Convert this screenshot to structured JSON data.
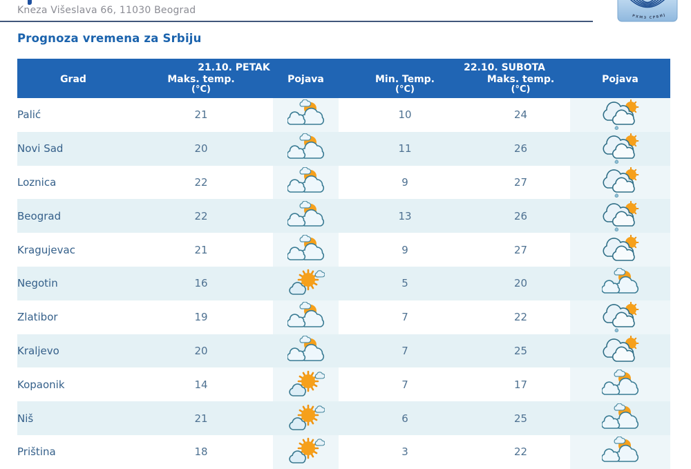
{
  "header": {
    "address": "Kneza Višeslava 66, 11030 Beograd",
    "logo_caption": "РХМЗ СРБИЈЕ"
  },
  "page_title": "Prognoza vremena za Srbiju",
  "table": {
    "day_groups": [
      "21.10. PETAK",
      "22.10. SUBOTA"
    ],
    "columns": [
      {
        "label": "Grad",
        "sub": ""
      },
      {
        "label": "Maks. temp.",
        "sub": "(°C)"
      },
      {
        "label": "Pojava",
        "sub": ""
      },
      {
        "label": "Min. Temp.",
        "sub": "(°C)"
      },
      {
        "label": "Maks. temp.",
        "sub": "(°C)"
      },
      {
        "label": "Pojava",
        "sub": ""
      }
    ],
    "rows": [
      {
        "city": "Palić",
        "fri_max": "21",
        "fri_icon": "partly-cloudy",
        "sat_min": "10",
        "sat_max": "24",
        "sat_icon": "cloudy-sun-drizzle"
      },
      {
        "city": "Novi Sad",
        "fri_max": "20",
        "fri_icon": "partly-cloudy",
        "sat_min": "11",
        "sat_max": "26",
        "sat_icon": "cloudy-sun-drizzle"
      },
      {
        "city": "Loznica",
        "fri_max": "22",
        "fri_icon": "partly-cloudy",
        "sat_min": "9",
        "sat_max": "27",
        "sat_icon": "cloudy-sun-drizzle"
      },
      {
        "city": "Beograd",
        "fri_max": "22",
        "fri_icon": "partly-cloudy",
        "sat_min": "13",
        "sat_max": "26",
        "sat_icon": "cloudy-sun-drizzle"
      },
      {
        "city": "Kragujevac",
        "fri_max": "21",
        "fri_icon": "partly-cloudy",
        "sat_min": "9",
        "sat_max": "27",
        "sat_icon": "cloudy-sun"
      },
      {
        "city": "Negotin",
        "fri_max": "16",
        "fri_icon": "mostly-sunny",
        "sat_min": "5",
        "sat_max": "20",
        "sat_icon": "partly-cloudy"
      },
      {
        "city": "Zlatibor",
        "fri_max": "19",
        "fri_icon": "partly-cloudy",
        "sat_min": "7",
        "sat_max": "22",
        "sat_icon": "cloudy-sun-drizzle"
      },
      {
        "city": "Kraljevo",
        "fri_max": "20",
        "fri_icon": "partly-cloudy",
        "sat_min": "7",
        "sat_max": "25",
        "sat_icon": "cloudy-sun"
      },
      {
        "city": "Kopaonik",
        "fri_max": "14",
        "fri_icon": "mostly-sunny",
        "sat_min": "7",
        "sat_max": "17",
        "sat_icon": "partly-cloudy"
      },
      {
        "city": "Niš",
        "fri_max": "21",
        "fri_icon": "mostly-sunny",
        "sat_min": "6",
        "sat_max": "25",
        "sat_icon": "partly-cloudy"
      },
      {
        "city": "Priština",
        "fri_max": "18",
        "fri_icon": "mostly-sunny",
        "sat_min": "3",
        "sat_max": "22",
        "sat_icon": "partly-cloudy"
      }
    ]
  },
  "colors": {
    "header_bg": "#2065b4",
    "row_alt_bg": "#e4f1f5",
    "title_text": "#1b63ad",
    "city_text": "#35608a",
    "value_text": "#4e7191",
    "address_text": "#8b8c94",
    "divider": "#41567b",
    "sun": "#f6a01b",
    "cloud_stroke": "#397b93"
  }
}
